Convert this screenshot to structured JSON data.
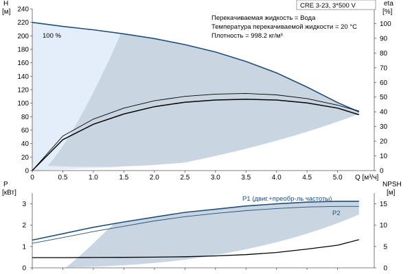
{
  "model_label": "CRE 3-23, 3*500 V",
  "colors": {
    "head_curve": "#1f4e79",
    "p1_curve": "#1f4e79",
    "p2_curve": "#1f4e79",
    "eta_curve": "#000000",
    "npsh_curve": "#000000",
    "range_fill": "#c9d6e2",
    "light_fill": "#e3eefa",
    "axis": "#555555"
  },
  "chart_data": [
    {
      "type": "line",
      "title": "",
      "xlabel": "Q [м³/ч]",
      "ylabel": "H [м]",
      "y2label": "eta [%]",
      "xlim": [
        0,
        5.6
      ],
      "ylim": [
        0,
        240
      ],
      "y2lim": [
        0,
        110
      ],
      "x_ticks": [
        "0",
        "0.5",
        "1.0",
        "1.5",
        "2.0",
        "2.5",
        "3.0",
        "3.5",
        "4.0",
        "4.5",
        "5.0"
      ],
      "y_ticks": [
        "0",
        "20",
        "40",
        "60",
        "80",
        "100",
        "120",
        "140",
        "160",
        "180",
        "200",
        "220",
        "240"
      ],
      "y2_ticks": [
        "0",
        "10",
        "20",
        "30",
        "40",
        "50",
        "60",
        "70",
        "80",
        "90",
        "100"
      ],
      "grid": false,
      "annotations": [
        "Перекачиваемая жидкость = Вода",
        "Температура перекачиваемой жидкости = 20 °C",
        "Плотность = 998.2 кг/м³"
      ],
      "speed_label": "100 %",
      "series": [
        {
          "role": "head",
          "axis": "left",
          "x": [
            0,
            0.5,
            1.0,
            1.5,
            2.0,
            2.5,
            3.0,
            3.5,
            4.0,
            4.5,
            5.0,
            5.35
          ],
          "values": [
            220,
            214,
            209,
            203,
            196,
            187,
            176,
            162,
            145,
            124,
            101,
            87
          ]
        },
        {
          "role": "eta-upper",
          "axis": "right",
          "x": [
            0,
            0.5,
            1.0,
            1.5,
            2.0,
            2.5,
            3.0,
            3.5,
            4.0,
            4.5,
            5.0,
            5.35
          ],
          "values": [
            0,
            23.5,
            35,
            42.5,
            47.5,
            50.5,
            52,
            52.5,
            51.5,
            49,
            44.5,
            40.5
          ]
        },
        {
          "role": "eta",
          "axis": "right",
          "x": [
            0,
            0.5,
            1.0,
            1.5,
            2.0,
            2.5,
            3.0,
            3.5,
            4.0,
            4.5,
            5.0,
            5.35
          ],
          "values": [
            0,
            21,
            31.5,
            38.5,
            43.5,
            46.5,
            48,
            48.5,
            48,
            46,
            42.5,
            38
          ]
        }
      ]
    },
    {
      "type": "line",
      "title": "",
      "xlabel": "",
      "ylabel": "P [кВт]",
      "y2label": "NPSH [м]",
      "xlim": [
        0,
        5.6
      ],
      "ylim": [
        0,
        3.5
      ],
      "y2lim": [
        0,
        17.5
      ],
      "y_ticks": [
        "0",
        "1",
        "2",
        "3"
      ],
      "y2_ticks": [
        "0",
        "5",
        "10",
        "15"
      ],
      "grid": false,
      "series": [
        {
          "name": "P1 (двиг.+преобр-ль частоты)",
          "axis": "left",
          "x": [
            0,
            0.5,
            1.0,
            1.5,
            2.0,
            2.5,
            3.0,
            3.5,
            4.0,
            4.5,
            5.0,
            5.35
          ],
          "values": [
            1.3,
            1.6,
            1.9,
            2.15,
            2.38,
            2.6,
            2.75,
            2.9,
            3.0,
            3.08,
            3.12,
            3.12
          ]
        },
        {
          "name": "P2",
          "axis": "left",
          "x": [
            0,
            0.5,
            1.0,
            1.5,
            2.0,
            2.5,
            3.0,
            3.5,
            4.0,
            4.5,
            5.0,
            5.35
          ],
          "values": [
            1.15,
            1.42,
            1.7,
            1.95,
            2.2,
            2.4,
            2.55,
            2.68,
            2.78,
            2.85,
            2.88,
            2.88
          ]
        },
        {
          "role": "npsh",
          "axis": "right",
          "x": [
            0,
            0.5,
            1.0,
            1.5,
            2.0,
            2.5,
            3.0,
            3.5,
            4.0,
            4.5,
            5.0,
            5.35
          ],
          "values": [
            2.4,
            2.4,
            2.42,
            2.45,
            2.5,
            2.6,
            2.8,
            3.1,
            3.6,
            4.4,
            5.3,
            6.6
          ]
        }
      ]
    }
  ]
}
